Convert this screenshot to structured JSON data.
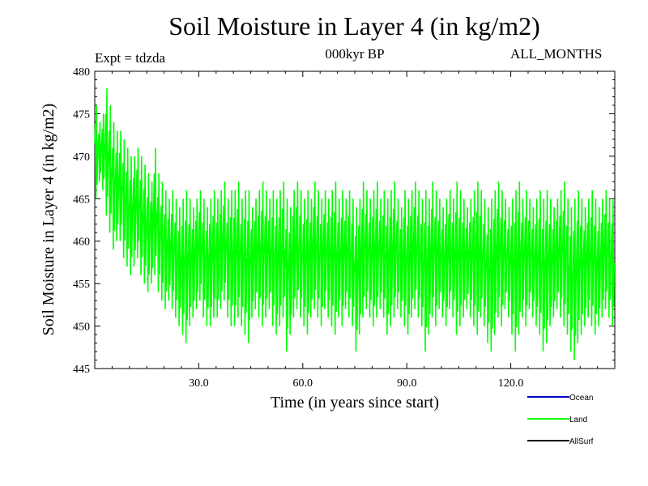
{
  "chart_data": {
    "type": "line",
    "title": "Soil Moisture in Layer 4 (in kg/m2)",
    "experiment_label": "Expt = tdzda",
    "subtitle": "000kyr BP",
    "period_label": "ALL_MONTHS",
    "xlabel": "Time (in years since start)",
    "ylabel": "Soil Moisture in Layer 4 (in kg/m2)",
    "xlim": [
      0,
      150
    ],
    "ylim": [
      445,
      480
    ],
    "x_ticks": [
      30,
      60,
      90,
      120
    ],
    "x_tick_labels": [
      "30.0",
      "60.0",
      "90.0",
      "120.0"
    ],
    "y_ticks": [
      445,
      450,
      455,
      460,
      465,
      470,
      475,
      480
    ],
    "y_tick_labels": [
      "445",
      "450",
      "455",
      "460",
      "465",
      "470",
      "475",
      "480"
    ],
    "grid": false,
    "legend": [
      {
        "name": "Ocean",
        "color": "#0000cc"
      },
      {
        "name": "Land",
        "color": "#00ff00"
      },
      {
        "name": "AllSurf",
        "color": "#000000"
      }
    ],
    "series": [
      {
        "name": "Land",
        "color": "#00ff00",
        "x_start": 0,
        "x_step": 1,
        "annual_min": [
          465,
          467,
          466,
          463,
          461,
          459,
          460,
          460,
          458,
          457,
          456,
          457,
          458,
          456,
          455,
          454,
          455,
          456,
          454,
          453,
          452,
          453,
          452,
          451,
          450,
          449,
          448,
          450,
          451,
          452,
          453,
          451,
          450,
          450,
          451,
          451,
          452,
          453,
          451,
          450,
          450,
          451,
          450,
          449,
          448,
          451,
          452,
          451,
          450,
          451,
          452,
          450,
          449,
          450,
          451,
          447,
          449,
          451,
          452,
          451,
          450,
          449,
          451,
          452,
          451,
          450,
          452,
          451,
          450,
          449,
          451,
          450,
          452,
          451,
          450,
          447,
          449,
          451,
          452,
          451,
          450,
          451,
          452,
          451,
          449,
          450,
          451,
          452,
          451,
          450,
          449,
          451,
          452,
          451,
          450,
          447,
          449,
          451,
          450,
          452,
          451,
          450,
          452,
          451,
          449,
          450,
          451,
          452,
          451,
          450,
          449,
          451,
          450,
          448,
          447,
          449,
          451,
          450,
          452,
          451,
          449,
          447,
          449,
          451,
          450,
          452,
          451,
          450,
          449,
          447,
          448,
          450,
          451,
          452,
          451,
          450,
          449,
          447,
          446,
          448,
          449,
          450,
          451,
          450,
          449,
          450,
          451,
          452,
          451,
          450
        ],
        "annual_max": [
          476,
          474,
          475,
          478,
          476,
          474,
          473,
          473,
          472,
          471,
          470,
          470,
          471,
          470,
          469,
          468,
          467,
          471,
          468,
          467,
          466,
          465,
          466,
          465,
          464,
          465,
          466,
          465,
          464,
          465,
          466,
          465,
          464,
          465,
          466,
          465,
          466,
          467,
          465,
          466,
          466,
          467,
          465,
          466,
          466,
          464,
          465,
          466,
          467,
          466,
          465,
          466,
          465,
          466,
          467,
          465,
          464,
          466,
          467,
          466,
          465,
          466,
          465,
          467,
          466,
          465,
          466,
          465,
          466,
          467,
          465,
          466,
          465,
          466,
          465,
          464,
          465,
          467,
          466,
          465,
          466,
          467,
          465,
          466,
          465,
          466,
          467,
          465,
          464,
          466,
          465,
          466,
          467,
          466,
          465,
          466,
          465,
          467,
          466,
          465,
          464,
          465,
          466,
          465,
          467,
          466,
          465,
          464,
          465,
          466,
          467,
          466,
          465,
          464,
          465,
          466,
          467,
          466,
          465,
          464,
          465,
          466,
          467,
          465,
          466,
          465,
          464,
          465,
          466,
          465,
          466,
          465,
          464,
          465,
          466,
          467,
          465,
          464,
          465,
          466,
          465,
          464,
          465,
          466,
          465,
          464,
          465,
          466,
          465,
          465
        ]
      }
    ]
  }
}
